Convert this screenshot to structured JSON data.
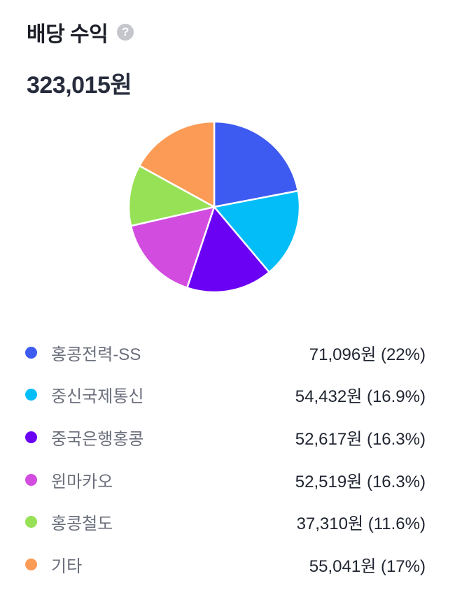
{
  "header": {
    "title": "배당 수익",
    "help_glyph": "?"
  },
  "total": "323,015원",
  "chart_data": {
    "type": "pie",
    "total_label": "323,015원",
    "slices": [
      {
        "name": "홍콩전력-SS",
        "amount": "71,096원",
        "percent": "(22%)",
        "value": 22.0,
        "color": "#3d5af1"
      },
      {
        "name": "중신국제통신",
        "amount": "54,432원",
        "percent": "(16.9%)",
        "value": 16.9,
        "color": "#02bdf7"
      },
      {
        "name": "중국은행홍콩",
        "amount": "52,617원",
        "percent": "(16.3%)",
        "value": 16.3,
        "color": "#6a00f4"
      },
      {
        "name": "윈마카오",
        "amount": "52,519원",
        "percent": "(16.3%)",
        "value": 16.3,
        "color": "#d24ddf"
      },
      {
        "name": "홍콩철도",
        "amount": "37,310원",
        "percent": "(11.6%)",
        "value": 11.6,
        "color": "#96e155"
      },
      {
        "name": "기타",
        "amount": "55,041원",
        "percent": "(17%)",
        "value": 17.0,
        "color": "#fc9b55"
      }
    ],
    "legend_position": "bottom"
  }
}
